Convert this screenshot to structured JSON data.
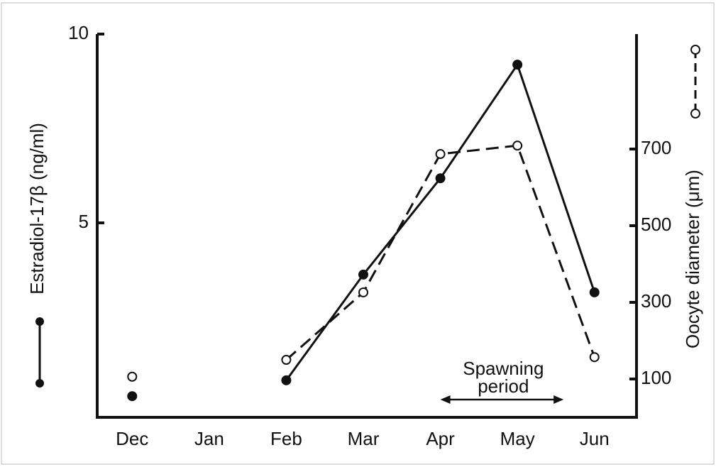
{
  "chart_data": {
    "type": "line",
    "categories": [
      "Dec",
      "Jan",
      "Feb",
      "Mar",
      "Apr",
      "May",
      "Jun"
    ],
    "ylabel": "Estradiol-17β (ng/ml)",
    "y2label": "Oocyte diameter (μm)",
    "ylim": [
      -0.15,
      10
    ],
    "yticks": [
      5,
      10
    ],
    "y2lim": [
      0,
      1000
    ],
    "y2ticks": [
      100,
      300,
      500,
      700
    ],
    "series": [
      {
        "color": "#111111",
        "values": [
          0.41,
          null,
          0.83,
          3.63,
          6.18,
          9.19,
          3.16
        ]
      },
      {
        "color": "#111111",
        "axis": "y2",
        "values": [
          106,
          null,
          150,
          326,
          687,
          709,
          157
        ]
      }
    ],
    "annotation": {
      "lines": [
        "Spawning",
        "period"
      ],
      "from": "Apr",
      "to": "May"
    }
  }
}
